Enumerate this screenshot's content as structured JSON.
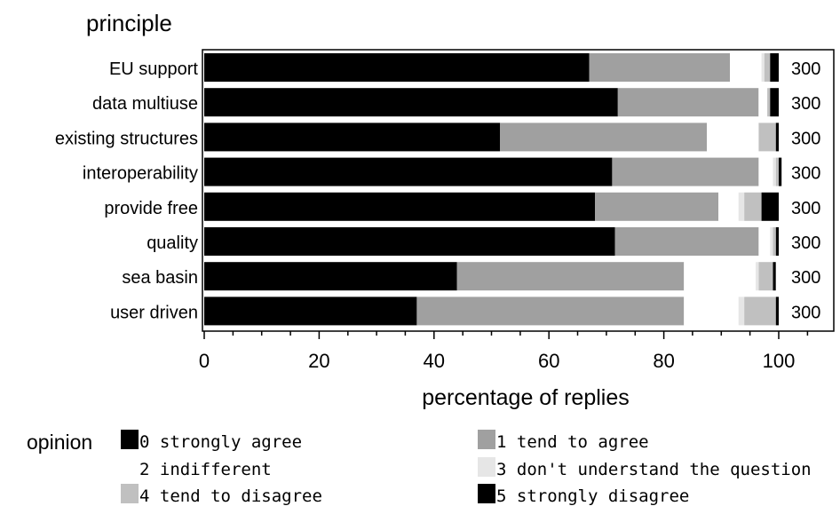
{
  "chart_data": {
    "type": "bar",
    "orientation": "horizontal",
    "stacked": true,
    "title": "",
    "category_axis_title": "principle",
    "xlabel": "percentage of replies",
    "xlim": [
      0,
      100
    ],
    "x_ticks": [
      "0",
      "20",
      "40",
      "60",
      "80",
      "100"
    ],
    "categories": [
      "EU support",
      "data multiuse",
      "existing structures",
      "interoperability",
      "provide free",
      "quality",
      "sea basin",
      "user driven"
    ],
    "counts": [
      "300",
      "300",
      "300",
      "300",
      "300",
      "300",
      "300",
      "300"
    ],
    "legend_title": "opinion",
    "legend_position": "bottom",
    "series": [
      {
        "name": "0 strongly agree",
        "color": "#000000",
        "values": [
          67,
          72,
          51.5,
          71,
          68,
          71.5,
          44,
          37
        ]
      },
      {
        "name": "1 tend to agree",
        "color": "#a0a0a0",
        "values": [
          24.5,
          24.5,
          36,
          25.5,
          21.5,
          25,
          39.5,
          46.5
        ]
      },
      {
        "name": "2 indifferent",
        "color": "#ffffff",
        "values": [
          5.5,
          1.5,
          9,
          2.5,
          3.5,
          2,
          12.5,
          9.5
        ]
      },
      {
        "name": "3 don't understand the question",
        "color": "#e6e6e6",
        "values": [
          0.5,
          0,
          0,
          0.5,
          1,
          0.5,
          0.5,
          1
        ]
      },
      {
        "name": "4 tend to disagree",
        "color": "#c0c0c0",
        "values": [
          1,
          0.5,
          3,
          0.5,
          3,
          0.5,
          2.5,
          5.5
        ]
      },
      {
        "name": "5 strongly disagree",
        "color": "#000000",
        "values": [
          1.5,
          1.5,
          0.5,
          0.5,
          3,
          0.5,
          0.5,
          0.5
        ]
      }
    ]
  }
}
